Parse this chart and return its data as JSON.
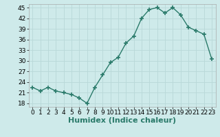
{
  "x": [
    0,
    1,
    2,
    3,
    4,
    5,
    6,
    7,
    8,
    9,
    10,
    11,
    12,
    13,
    14,
    15,
    16,
    17,
    18,
    19,
    20,
    21,
    22,
    23
  ],
  "y": [
    22.5,
    21.5,
    22.5,
    21.5,
    21.0,
    20.5,
    19.5,
    18.0,
    22.5,
    26.0,
    29.5,
    31.0,
    35.0,
    37.0,
    42.0,
    44.5,
    45.0,
    43.5,
    45.0,
    43.0,
    39.5,
    38.5,
    37.5,
    30.5
  ],
  "line_color": "#2a7a6a",
  "marker": "+",
  "markersize": 4,
  "markeredgewidth": 1.2,
  "linewidth": 1.0,
  "xlabel": "Humidex (Indice chaleur)",
  "xlim": [
    -0.5,
    23.5
  ],
  "ylim": [
    17,
    46
  ],
  "yticks": [
    18,
    21,
    24,
    27,
    30,
    33,
    36,
    39,
    42,
    45
  ],
  "xticks": [
    0,
    1,
    2,
    3,
    4,
    5,
    6,
    7,
    8,
    9,
    10,
    11,
    12,
    13,
    14,
    15,
    16,
    17,
    18,
    19,
    20,
    21,
    22,
    23
  ],
  "bg_color": "#ceeaea",
  "grid_color": "#b8d8d8",
  "xlabel_fontsize": 8,
  "tick_fontsize": 6.5
}
